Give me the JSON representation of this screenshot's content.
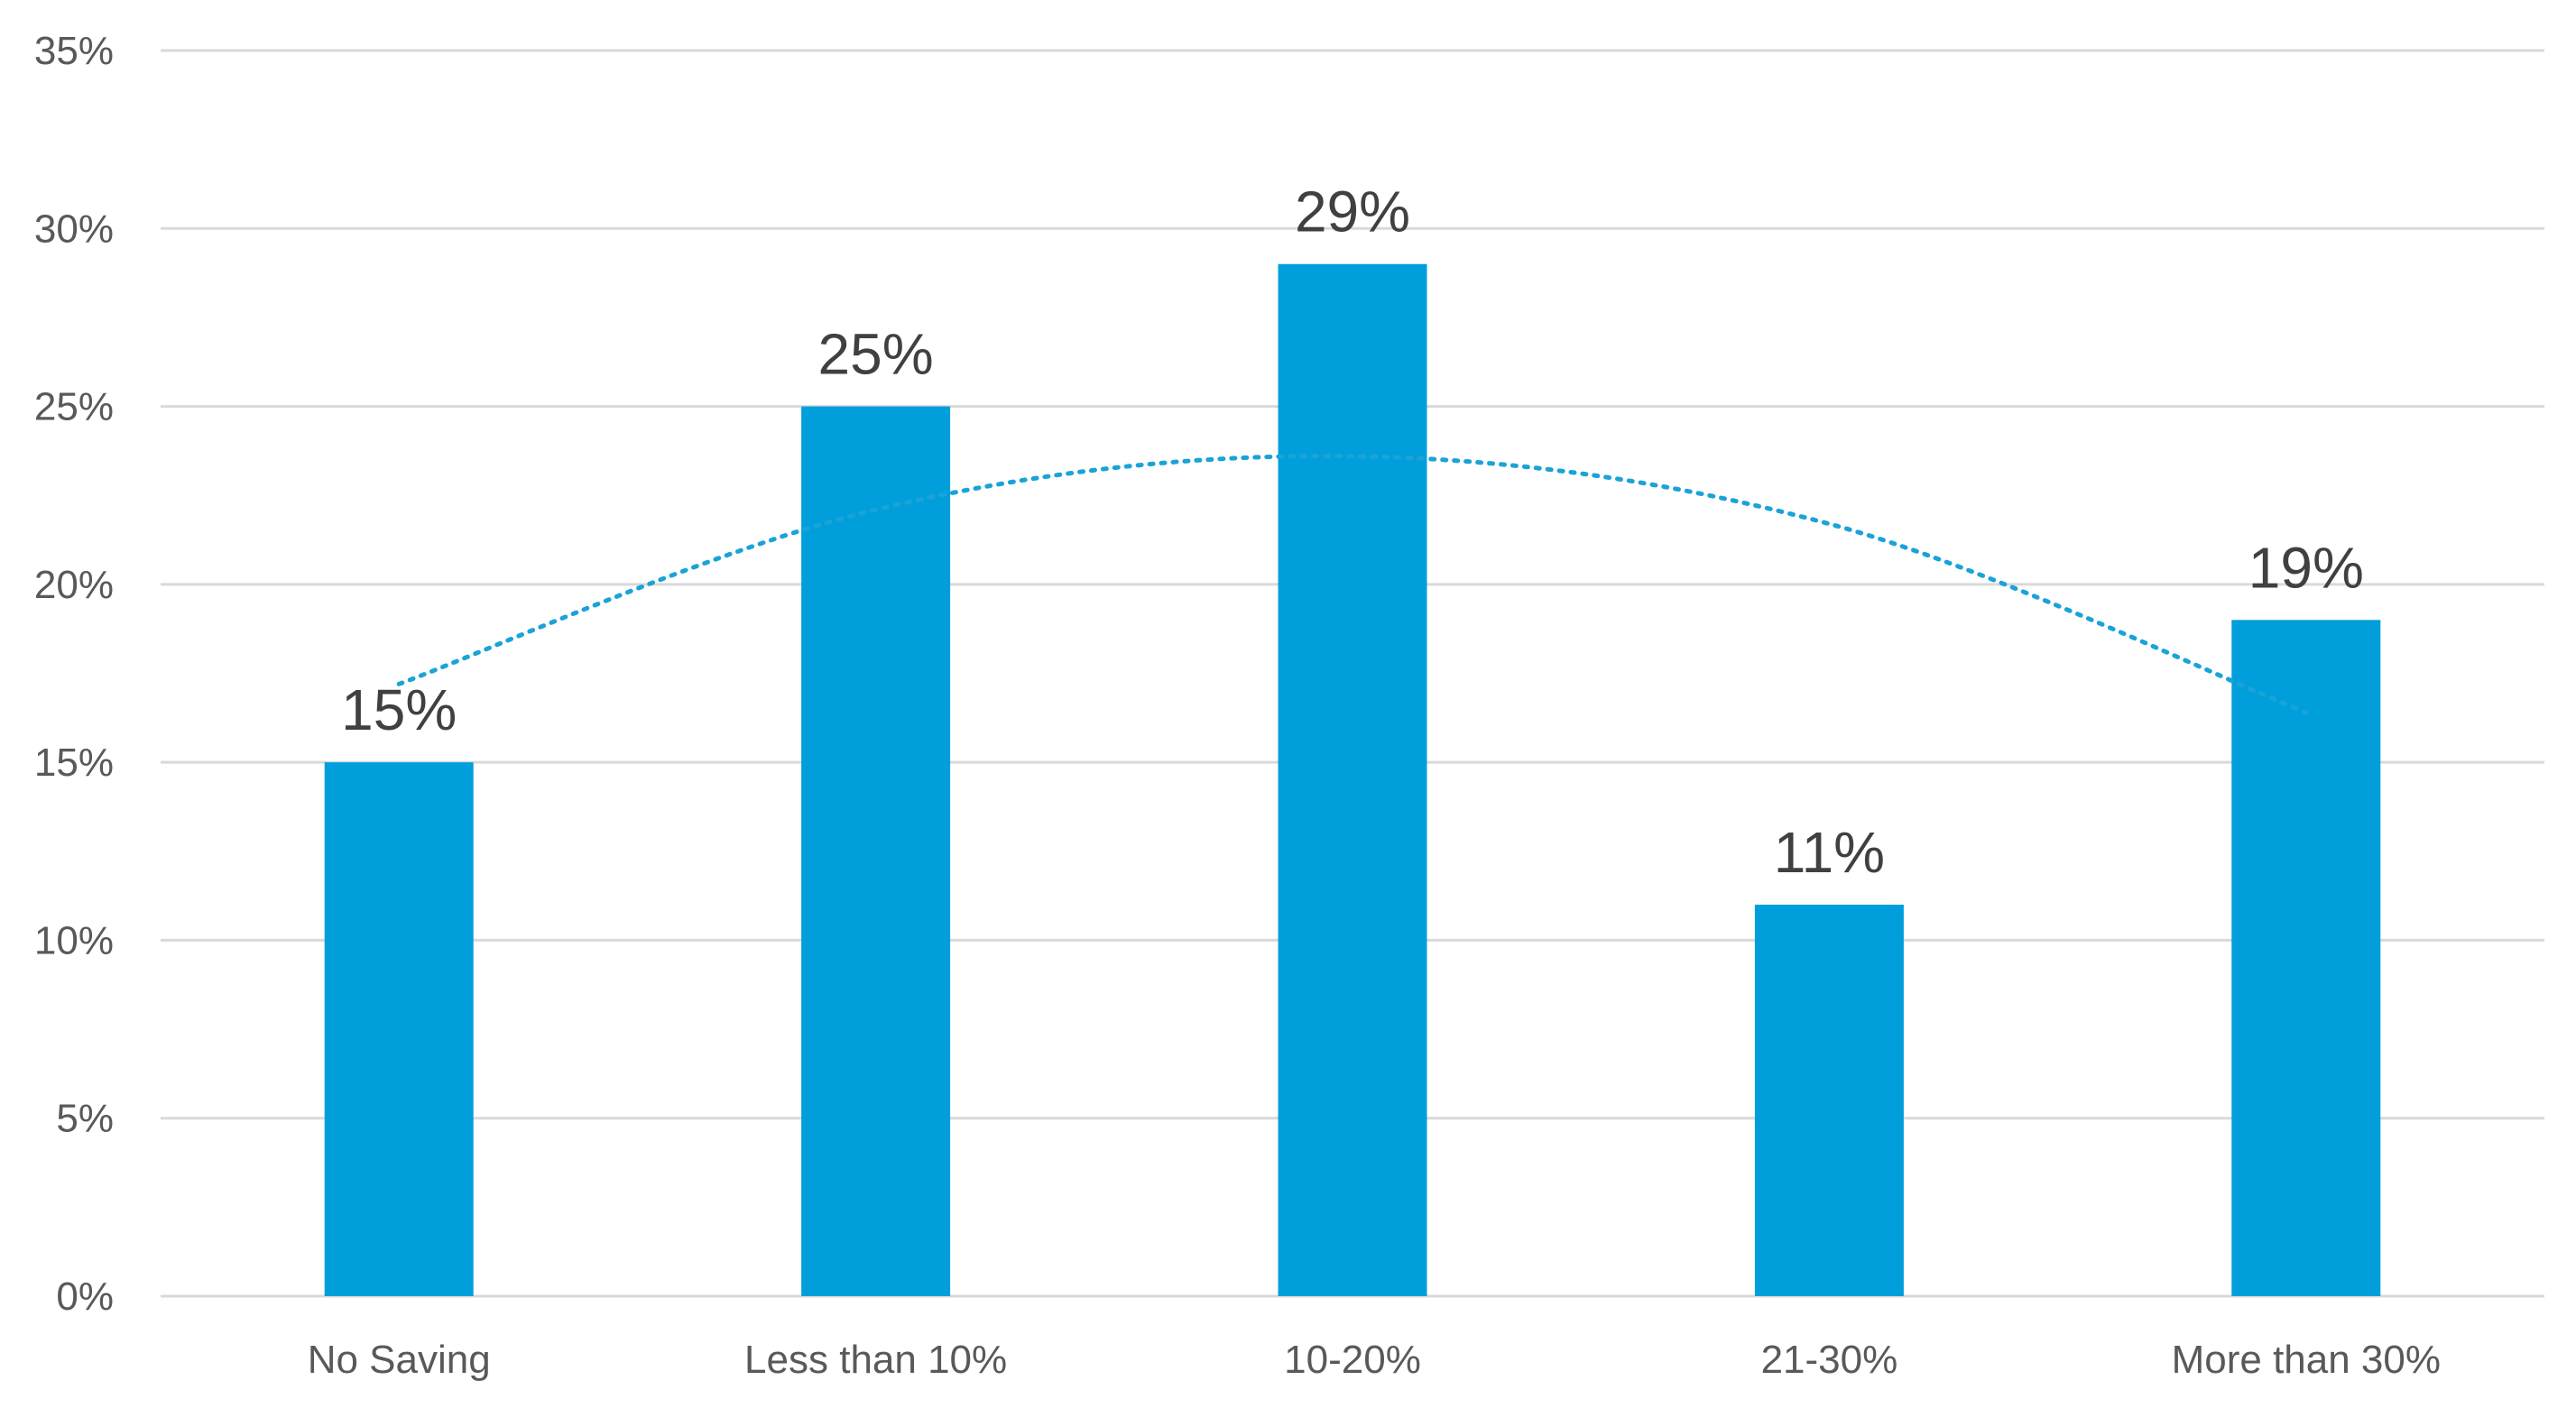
{
  "chart_data": {
    "type": "bar",
    "categories": [
      "No Saving",
      "Less than 10%",
      "10-20%",
      "21-30%",
      "More than 30%"
    ],
    "values": [
      15,
      25,
      29,
      11,
      19
    ],
    "value_labels": [
      "15%",
      "25%",
      "29%",
      "11%",
      "19%"
    ],
    "title": "",
    "xlabel": "",
    "ylabel": "",
    "ylim": [
      0,
      35
    ],
    "y_ticks": [
      0,
      5,
      10,
      15,
      20,
      25,
      30,
      35
    ],
    "y_tick_labels": [
      "0%",
      "5%",
      "10%",
      "15%",
      "20%",
      "25%",
      "30%",
      "35%"
    ],
    "grid": true,
    "legend": "none",
    "trendline": {
      "type": "polynomial",
      "style": "dotted",
      "values": [
        17.2,
        22.1,
        23.6,
        21.7,
        16.4
      ]
    },
    "colors": {
      "bar": "#009fdb",
      "trendline": "#1aa3d8",
      "grid": "#d9d9d9",
      "tick_text": "#595959",
      "data_label_text": "#404040"
    }
  }
}
